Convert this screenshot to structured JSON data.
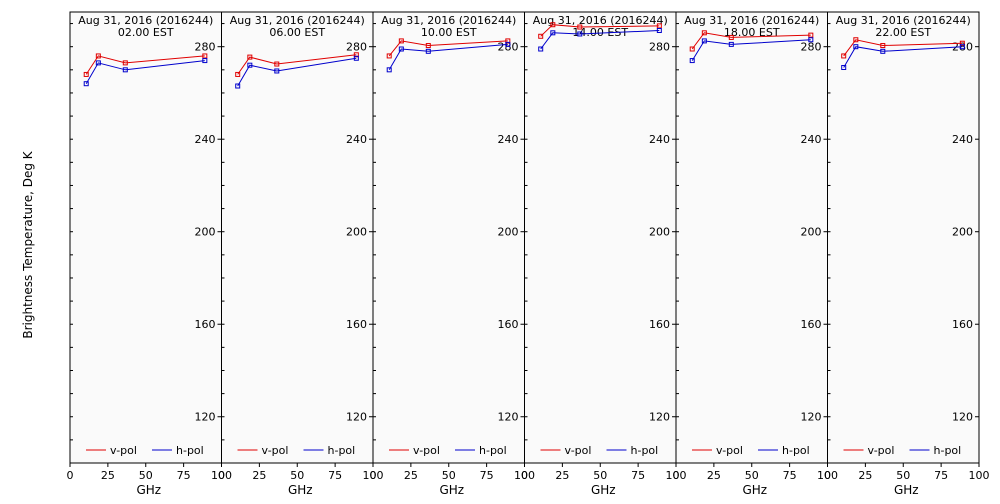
{
  "shared": {
    "ylabel": "Brightness Temperature, Deg K",
    "xlabel": "GHz",
    "x_ticks": [
      0,
      25,
      50,
      75,
      100
    ],
    "y_ticks": [
      120,
      160,
      200,
      240,
      280
    ],
    "xlim": [
      0,
      100
    ],
    "ylim": [
      100,
      295
    ],
    "legend": {
      "vpol": "v-pol",
      "hpol": "h-pol"
    },
    "colors": {
      "vpol": "#e00000",
      "hpol": "#0000cc",
      "frame": "#000000",
      "plot_bg": "#fafafa"
    }
  },
  "chart_data": [
    {
      "type": "line",
      "title": "Aug 31, 2016 (2016244)",
      "subtitle": "02.00 EST",
      "x": [
        10.7,
        18.7,
        36.5,
        89.0
      ],
      "series": [
        {
          "name": "v-pol",
          "values": [
            268,
            276,
            273,
            276
          ]
        },
        {
          "name": "h-pol",
          "values": [
            264,
            273,
            270,
            274
          ]
        }
      ]
    },
    {
      "type": "line",
      "title": "Aug 31, 2016 (2016244)",
      "subtitle": "06.00 EST",
      "x": [
        10.7,
        18.7,
        36.5,
        89.0
      ],
      "series": [
        {
          "name": "v-pol",
          "values": [
            268,
            275.5,
            272.5,
            276.5
          ]
        },
        {
          "name": "h-pol",
          "values": [
            263,
            272,
            269.5,
            275
          ]
        }
      ]
    },
    {
      "type": "line",
      "title": "Aug 31, 2016 (2016244)",
      "subtitle": "10.00 EST",
      "x": [
        10.7,
        18.7,
        36.5,
        89.0
      ],
      "series": [
        {
          "name": "v-pol",
          "values": [
            276,
            282.5,
            280.5,
            282.5
          ]
        },
        {
          "name": "h-pol",
          "values": [
            270,
            279,
            278,
            281
          ]
        }
      ]
    },
    {
      "type": "line",
      "title": "Aug 31, 2016 (2016244)",
      "subtitle": "14.00 EST",
      "x": [
        10.7,
        18.7,
        36.5,
        89.0
      ],
      "series": [
        {
          "name": "v-pol",
          "values": [
            284.5,
            289.5,
            288.5,
            289
          ]
        },
        {
          "name": "h-pol",
          "values": [
            279,
            286,
            285.5,
            287
          ]
        }
      ]
    },
    {
      "type": "line",
      "title": "Aug 31, 2016 (2016244)",
      "subtitle": "18.00 EST",
      "x": [
        10.7,
        18.7,
        36.5,
        89.0
      ],
      "series": [
        {
          "name": "v-pol",
          "values": [
            279,
            286,
            284,
            285
          ]
        },
        {
          "name": "h-pol",
          "values": [
            274,
            282.5,
            281,
            283
          ]
        }
      ]
    },
    {
      "type": "line",
      "title": "Aug 31, 2016 (2016244)",
      "subtitle": "22.00 EST",
      "x": [
        10.7,
        18.7,
        36.5,
        89.0
      ],
      "series": [
        {
          "name": "v-pol",
          "values": [
            276,
            283,
            280.5,
            281.5
          ]
        },
        {
          "name": "h-pol",
          "values": [
            271,
            280,
            278,
            280
          ]
        }
      ]
    }
  ]
}
